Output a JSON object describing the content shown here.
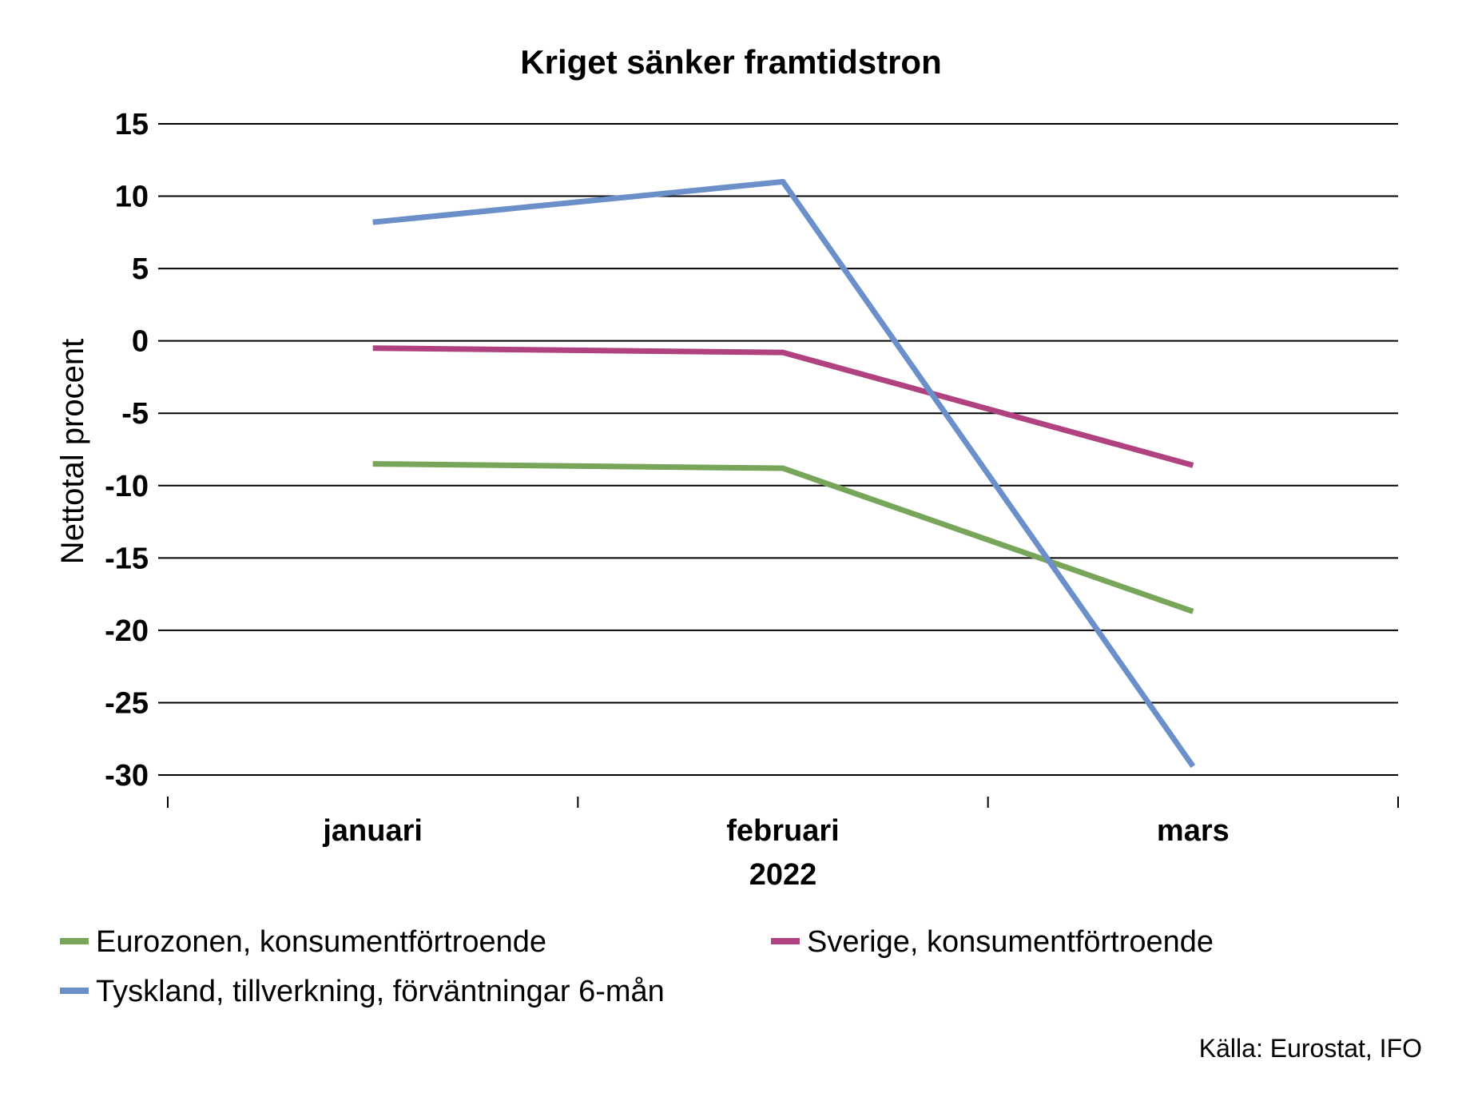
{
  "chart_data": {
    "type": "line",
    "title": "Kriget sänker framtidstron",
    "ylabel": "Nettotal procent",
    "xlabel": "",
    "year_label": "2022",
    "categories": [
      "januari",
      "februari",
      "mars"
    ],
    "ylim": [
      -30,
      15
    ],
    "yticks": [
      15,
      10,
      5,
      0,
      -5,
      -10,
      -15,
      -20,
      -25,
      -30
    ],
    "grid": true,
    "legend_position": "bottom",
    "series": [
      {
        "name": "Eurozonen, konsumentförtroende",
        "color": "#77a55a",
        "values": [
          -8.5,
          -8.8,
          -18.7
        ]
      },
      {
        "name": "Sverige, konsumentförtroende",
        "color": "#b0437f",
        "values": [
          -0.5,
          -0.8,
          -8.6
        ]
      },
      {
        "name": "Tyskland, tillverkning, förväntningar 6-mån",
        "color": "#6b8fc8",
        "values": [
          8.2,
          11.0,
          -29.4
        ]
      }
    ],
    "source": "Källa: Eurostat, IFO"
  }
}
